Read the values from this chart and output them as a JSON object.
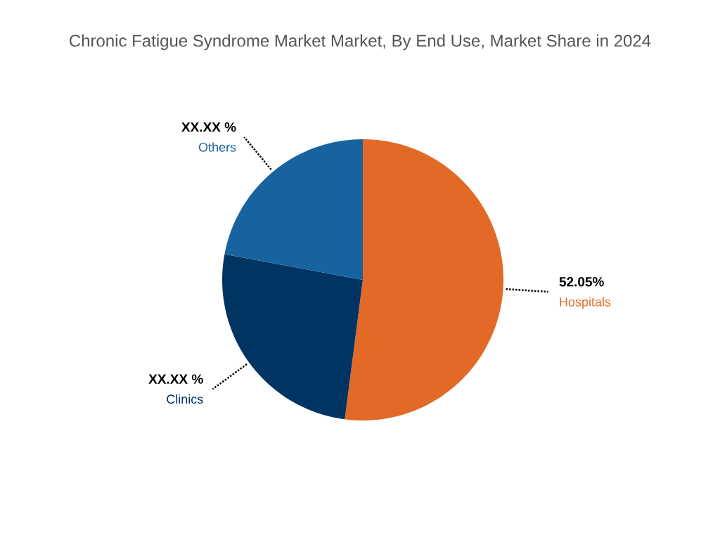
{
  "chart_data": {
    "type": "pie",
    "title": "Chronic Fatigue Syndrome Market Market, By End Use, Market Share in 2024",
    "categories": [
      "Hospitals",
      "Clinics",
      "Others"
    ],
    "values": [
      52.05,
      25.88,
      22.07
    ],
    "colors": [
      "#e36a26",
      "#003463",
      "#17639f"
    ],
    "value_labels": [
      "52.05%",
      "XX.XX %",
      "XX.XX %"
    ]
  }
}
